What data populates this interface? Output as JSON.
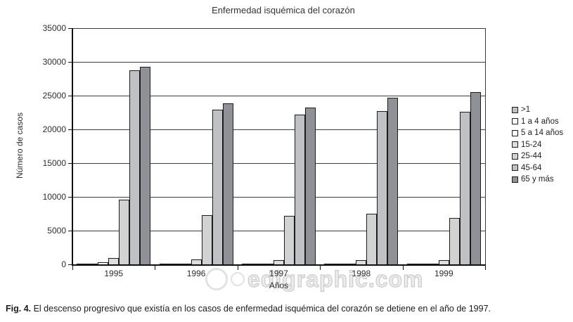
{
  "title": "Enfermedad isquémica del corazón",
  "watermark": "edigraphic.com",
  "caption": {
    "prefix": "Fig. 4.",
    "text": " El descenso progresivo que existía en los casos de enfermedad isquémica del corazón se detiene en el año de 1997."
  },
  "chart_data": {
    "type": "bar",
    "title": "Enfermedad isquémica del corazón",
    "xlabel": "Años",
    "ylabel": "Número de casos",
    "ylim": [
      0,
      35000
    ],
    "yticks": [
      0,
      5000,
      10000,
      15000,
      20000,
      25000,
      30000,
      35000
    ],
    "grid": true,
    "legend_position": "right",
    "categories": [
      "1995",
      "1996",
      "1997",
      "1998",
      "1999"
    ],
    "series": [
      {
        "name": ">1",
        "color": "#c0c0c0",
        "values": [
          30,
          100,
          100,
          100,
          100
        ]
      },
      {
        "name": "1 a 4 años",
        "color": "#ffffff",
        "values": [
          20,
          50,
          50,
          50,
          50
        ]
      },
      {
        "name": "5 a 14 años",
        "color": "#ffffff",
        "values": [
          350,
          150,
          150,
          150,
          150
        ]
      },
      {
        "name": "15-24",
        "color": "#dcdee0",
        "values": [
          900,
          700,
          650,
          650,
          600
        ]
      },
      {
        "name": "25-44",
        "color": "#d2d2d2",
        "values": [
          9600,
          7300,
          7200,
          7500,
          6900
        ]
      },
      {
        "name": "45-64",
        "color": "#bfc1c5",
        "values": [
          28800,
          22900,
          22200,
          22700,
          22600
        ]
      },
      {
        "name": "65 y más",
        "color": "#8f9196",
        "values": [
          29300,
          23900,
          23200,
          24700,
          25500
        ]
      }
    ]
  }
}
